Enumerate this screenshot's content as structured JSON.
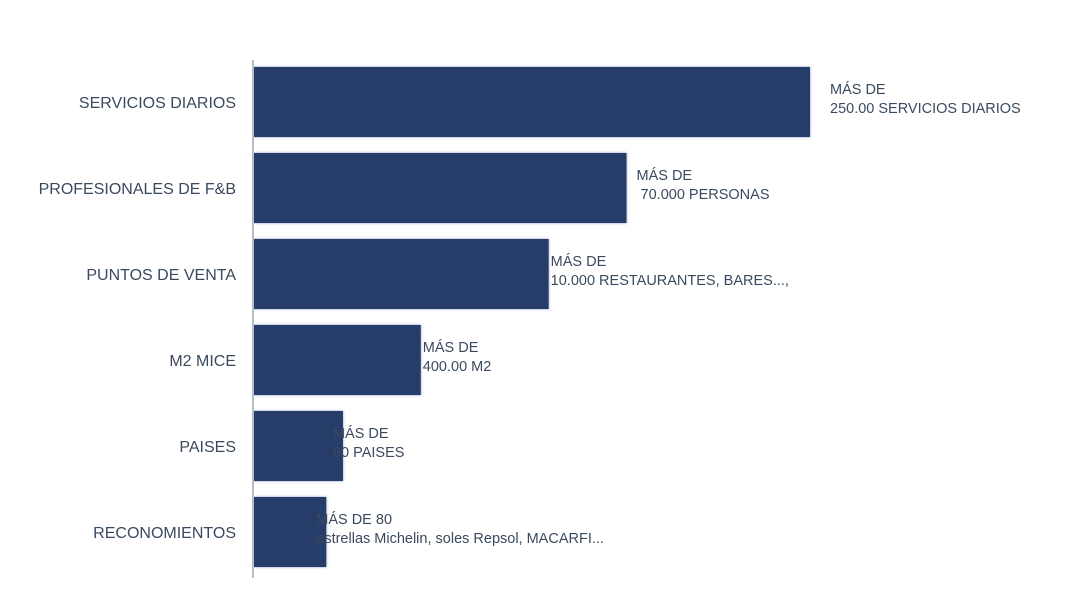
{
  "chart_data": {
    "type": "bar",
    "orientation": "horizontal",
    "categories": [
      "SERVICIOS DIARIOS",
      "PROFESIONALES DE F&B",
      "PUNTOS DE VENTA",
      "M2 MICE",
      "PAISES",
      "RECONOMIENTOS"
    ],
    "values": [
      100,
      67,
      53,
      30,
      16,
      13
    ],
    "data_labels": [
      [
        "MÁS DE",
        "250.00 SERVICIOS DIARIOS"
      ],
      [
        "MÁS DE",
        " 70.000 PERSONAS"
      ],
      [
        "MÁS DE",
        "10.000 RESTAURANTES, BARES...,"
      ],
      [
        "MÁS DE",
        "400.00 M2"
      ],
      [
        "MÁS DE",
        "80 PAISES"
      ],
      [
        "MÁS DE 80",
        "estrellas Michelin, soles Repsol,  MACARFI..."
      ]
    ],
    "title": "",
    "xlabel": "",
    "ylabel": "",
    "xlim": [
      0,
      100
    ],
    "grid": false,
    "legend": "none",
    "bar_color": "#253d6b",
    "text_color": "#3a4a5e",
    "axis_color": "#b9bec5"
  }
}
